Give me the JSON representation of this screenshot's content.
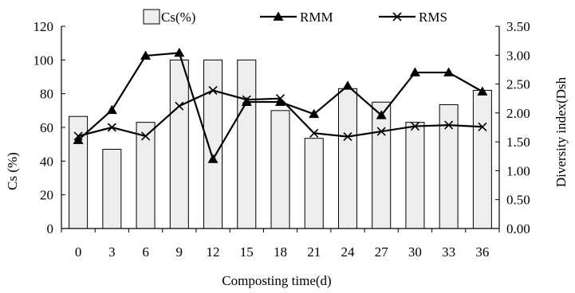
{
  "chart_data": {
    "type": "bar+line",
    "categories": [
      "0",
      "3",
      "6",
      "9",
      "12",
      "15",
      "18",
      "21",
      "24",
      "27",
      "30",
      "33",
      "36"
    ],
    "xlabel": "Composting time(d)",
    "ylabel_left": "Cs (%)",
    "ylabel_right": "Diversity index(Dsh",
    "ylim_left": [
      0,
      120
    ],
    "ylim_right": [
      0,
      3.5
    ],
    "yticks_left": [
      "0",
      "20",
      "40",
      "60",
      "80",
      "100",
      "120"
    ],
    "yticks_right": [
      "0.00",
      "0.50",
      "1.00",
      "1.50",
      "2.00",
      "2.50",
      "3.00",
      "3.50"
    ],
    "legend_position": "top",
    "grid": false,
    "series": [
      {
        "name": "Cs(%)",
        "kind": "bar",
        "axis": "left",
        "color": "#eeeeee",
        "values": [
          66.5,
          47,
          63,
          100,
          100,
          100,
          70,
          53.5,
          83,
          75,
          63,
          73.5,
          82
        ]
      },
      {
        "name": "RMM",
        "kind": "line",
        "axis": "right",
        "marker": "triangle",
        "color": "#000000",
        "values": [
          1.53,
          2.05,
          2.99,
          3.04,
          1.2,
          2.19,
          2.19,
          1.98,
          2.47,
          1.96,
          2.7,
          2.7,
          2.37
        ]
      },
      {
        "name": "RMS",
        "kind": "line",
        "axis": "right",
        "marker": "x",
        "color": "#000000",
        "values": [
          1.6,
          1.75,
          1.6,
          2.12,
          2.39,
          2.23,
          2.25,
          1.65,
          1.59,
          1.68,
          1.77,
          1.79,
          1.76
        ]
      }
    ]
  }
}
